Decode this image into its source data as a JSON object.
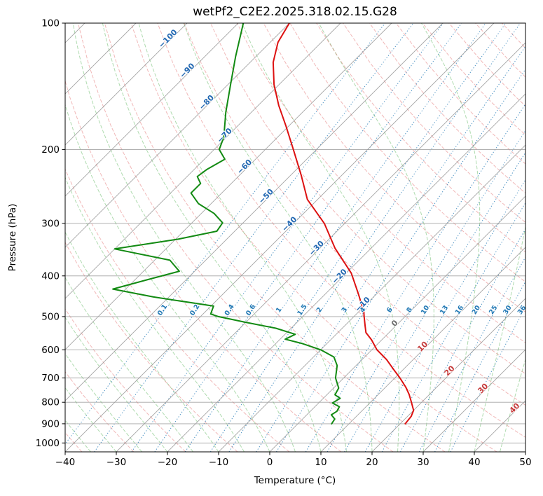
{
  "title": "wetPf2_C2E2.2025.318.02.15.G28",
  "axes": {
    "x_label": "Temperature (°C)",
    "y_label": "Pressure (hPa)",
    "x_ticks": [
      {
        "value": -40,
        "label": "−40"
      },
      {
        "value": -30,
        "label": "−30"
      },
      {
        "value": -20,
        "label": "−20"
      },
      {
        "value": -10,
        "label": "−10"
      },
      {
        "value": 0,
        "label": "0"
      },
      {
        "value": 10,
        "label": "10"
      },
      {
        "value": 20,
        "label": "20"
      },
      {
        "value": 30,
        "label": "30"
      },
      {
        "value": 40,
        "label": "40"
      },
      {
        "value": 50,
        "label": "50"
      }
    ],
    "y_ticks": [
      {
        "value": 100,
        "label": "100"
      },
      {
        "value": 200,
        "label": "200"
      },
      {
        "value": 300,
        "label": "300"
      },
      {
        "value": 400,
        "label": "400"
      },
      {
        "value": 500,
        "label": "500"
      },
      {
        "value": 600,
        "label": "600"
      },
      {
        "value": 700,
        "label": "700"
      },
      {
        "value": 800,
        "label": "800"
      },
      {
        "value": 900,
        "label": "900"
      },
      {
        "value": 1000,
        "label": "1000"
      }
    ]
  },
  "chart_data": {
    "type": "line",
    "variant": "skew-t-log-p",
    "x_axis": {
      "label": "Temperature (°C)",
      "range_c": [
        -40,
        50
      ]
    },
    "y_axis": {
      "label": "Pressure (hPa)",
      "range_hpa": [
        100,
        1050
      ],
      "scale": "log"
    },
    "skew_deg": 45,
    "grid": true,
    "pressure_gridlines_hpa": [
      100,
      200,
      300,
      400,
      500,
      600,
      700,
      800,
      900,
      1000
    ],
    "series": [
      {
        "name": "temperature",
        "color": "#dd1111",
        "points_p_hpa_t_c": [
          [
            100,
            -80
          ],
          [
            111,
            -78.5
          ],
          [
            124,
            -75.5
          ],
          [
            140,
            -71
          ],
          [
            157,
            -66
          ],
          [
            176,
            -60.5
          ],
          [
            200,
            -54.5
          ],
          [
            230,
            -48
          ],
          [
            263,
            -42
          ],
          [
            300,
            -34
          ],
          [
            344,
            -27
          ],
          [
            394,
            -19
          ],
          [
            442,
            -13.5
          ],
          [
            487,
            -9
          ],
          [
            500,
            -8
          ],
          [
            526,
            -6
          ],
          [
            546,
            -4.5
          ],
          [
            568,
            -2
          ],
          [
            600,
            1
          ],
          [
            633,
            4.8
          ],
          [
            667,
            8
          ],
          [
            700,
            11
          ],
          [
            737,
            14
          ],
          [
            766,
            16
          ],
          [
            800,
            18
          ],
          [
            836,
            20
          ],
          [
            864,
            20.7
          ],
          [
            900,
            21
          ]
        ]
      },
      {
        "name": "dewpoint",
        "color": "#128a12",
        "points_p_hpa_t_c": [
          [
            100,
            -89
          ],
          [
            120,
            -84
          ],
          [
            140,
            -79.5
          ],
          [
            163,
            -75
          ],
          [
            187,
            -70.5
          ],
          [
            200,
            -69
          ],
          [
            211,
            -66
          ],
          [
            223,
            -67.5
          ],
          [
            232,
            -68
          ],
          [
            241,
            -66
          ],
          [
            254,
            -66
          ],
          [
            269,
            -62.5
          ],
          [
            284,
            -57.5
          ],
          [
            299,
            -54
          ],
          [
            313,
            -53.5
          ],
          [
            327,
            -59.5
          ],
          [
            345,
            -70
          ],
          [
            367,
            -57
          ],
          [
            390,
            -53
          ],
          [
            408,
            -57.5
          ],
          [
            430,
            -62.5
          ],
          [
            449,
            -53
          ],
          [
            472,
            -39.5
          ],
          [
            493,
            -38.5
          ],
          [
            500,
            -36.5
          ],
          [
            516,
            -30
          ],
          [
            533,
            -23
          ],
          [
            551,
            -18
          ],
          [
            566,
            -19
          ],
          [
            579,
            -15
          ],
          [
            600,
            -10
          ],
          [
            624,
            -6
          ],
          [
            654,
            -3.7
          ],
          [
            700,
            -1.6
          ],
          [
            740,
            1
          ],
          [
            768,
            1.6
          ],
          [
            783,
            3.3
          ],
          [
            803,
            2.7
          ],
          [
            820,
            4.8
          ],
          [
            841,
            5.2
          ],
          [
            857,
            4.8
          ],
          [
            877,
            6.3
          ],
          [
            900,
            6.6
          ]
        ]
      }
    ],
    "isotherms": {
      "color": "#9b9b9b",
      "step_c": 10,
      "labels": [
        {
          "t_c": -100,
          "label": "−100",
          "p_hpa": 110,
          "color": "#2268b2"
        },
        {
          "t_c": -90,
          "label": "−90",
          "p_hpa": 131,
          "color": "#2268b2"
        },
        {
          "t_c": -80,
          "label": "−80",
          "p_hpa": 156,
          "color": "#2268b2"
        },
        {
          "t_c": -70,
          "label": "−70",
          "p_hpa": 187,
          "color": "#2268b2"
        },
        {
          "t_c": -60,
          "label": "−60",
          "p_hpa": 222,
          "color": "#2268b2"
        },
        {
          "t_c": -50,
          "label": "−50",
          "p_hpa": 261,
          "color": "#2268b2"
        },
        {
          "t_c": -40,
          "label": "−40",
          "p_hpa": 304,
          "color": "#2268b2"
        },
        {
          "t_c": -30,
          "label": "−30",
          "p_hpa": 347,
          "color": "#2268b2"
        },
        {
          "t_c": -20,
          "label": "−20",
          "p_hpa": 405,
          "color": "#2268b2"
        },
        {
          "t_c": -10,
          "label": "−10",
          "p_hpa": 472,
          "color": "#2268b2"
        },
        {
          "t_c": 0,
          "label": "0",
          "p_hpa": 524,
          "color": "#6e6e6e"
        },
        {
          "t_c": 10,
          "label": "10",
          "p_hpa": 595,
          "color": "#c53a3a"
        },
        {
          "t_c": 20,
          "label": "20",
          "p_hpa": 680,
          "color": "#c53a3a"
        },
        {
          "t_c": 30,
          "label": "30",
          "p_hpa": 749,
          "color": "#c53a3a"
        },
        {
          "t_c": 40,
          "label": "40",
          "p_hpa": 834,
          "color": "#c53a3a"
        }
      ]
    },
    "mixing_ratio_g_kg": {
      "values": [
        0.1,
        0.2,
        0.4,
        0.6,
        1,
        1.5,
        2,
        3,
        4,
        6,
        8,
        10,
        13,
        16,
        20,
        25,
        30,
        36
      ],
      "label_p_hpa": 485,
      "color": "#1f77b4"
    },
    "dry_adiabats_theta_c": {
      "start": -40,
      "end": 200,
      "step": 10,
      "color": "#d62728"
    },
    "moist_adiabats_t0_c": {
      "start": -40,
      "end": 45,
      "step": 5,
      "color": "#2ca02c"
    }
  }
}
